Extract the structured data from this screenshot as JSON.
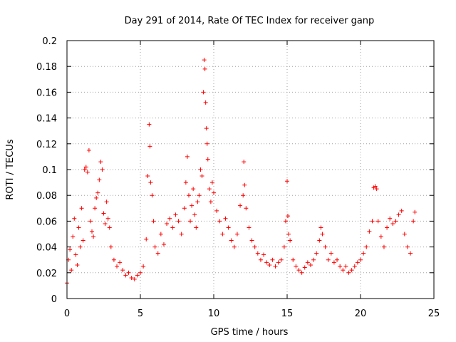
{
  "chart_data": {
    "type": "scatter",
    "title": "Day 291 of 2014, Rate Of TEC Index for receiver ganp",
    "xlabel": "GPS time / hours",
    "ylabel": "ROTI / TECUs",
    "xlim": [
      0,
      25
    ],
    "ylim": [
      0,
      0.2
    ],
    "xticks": [
      0,
      5,
      10,
      15,
      20,
      25
    ],
    "xtick_labels": [
      "0",
      "5",
      "10",
      "15",
      "20",
      "25"
    ],
    "yticks": [
      0,
      0.02,
      0.04,
      0.06,
      0.08,
      0.1,
      0.12,
      0.14,
      0.16,
      0.18,
      0.2
    ],
    "ytick_labels": [
      "0",
      "0.02",
      "0.04",
      "0.06",
      "0.08",
      "0.1",
      "0.12",
      "0.14",
      "0.16",
      "0.18",
      "0.2"
    ],
    "grid": true,
    "marker": "+",
    "color": "#ff0000",
    "series": [
      {
        "name": "ROTI",
        "points": [
          [
            0.0,
            0.012
          ],
          [
            0.1,
            0.03
          ],
          [
            0.2,
            0.038
          ],
          [
            0.3,
            0.022
          ],
          [
            0.4,
            0.048
          ],
          [
            0.5,
            0.062
          ],
          [
            0.6,
            0.034
          ],
          [
            0.7,
            0.026
          ],
          [
            0.8,
            0.055
          ],
          [
            0.9,
            0.04
          ],
          [
            1.0,
            0.07
          ],
          [
            1.1,
            0.045
          ],
          [
            1.2,
            0.1
          ],
          [
            1.3,
            0.102
          ],
          [
            1.4,
            0.098
          ],
          [
            1.5,
            0.115
          ],
          [
            1.6,
            0.06
          ],
          [
            1.7,
            0.052
          ],
          [
            1.8,
            0.048
          ],
          [
            1.9,
            0.07
          ],
          [
            2.0,
            0.078
          ],
          [
            2.1,
            0.082
          ],
          [
            2.2,
            0.092
          ],
          [
            2.3,
            0.106
          ],
          [
            2.4,
            0.1
          ],
          [
            2.5,
            0.066
          ],
          [
            2.6,
            0.058
          ],
          [
            2.7,
            0.075
          ],
          [
            2.8,
            0.062
          ],
          [
            2.9,
            0.055
          ],
          [
            3.0,
            0.04
          ],
          [
            3.2,
            0.03
          ],
          [
            3.4,
            0.025
          ],
          [
            3.6,
            0.028
          ],
          [
            3.8,
            0.022
          ],
          [
            4.0,
            0.018
          ],
          [
            4.2,
            0.02
          ],
          [
            4.4,
            0.016
          ],
          [
            4.6,
            0.015
          ],
          [
            4.8,
            0.018
          ],
          [
            5.0,
            0.02
          ],
          [
            5.2,
            0.025
          ],
          [
            5.4,
            0.046
          ],
          [
            5.5,
            0.095
          ],
          [
            5.6,
            0.135
          ],
          [
            5.65,
            0.118
          ],
          [
            5.7,
            0.09
          ],
          [
            5.8,
            0.08
          ],
          [
            5.9,
            0.06
          ],
          [
            6.0,
            0.04
          ],
          [
            6.2,
            0.035
          ],
          [
            6.4,
            0.05
          ],
          [
            6.6,
            0.042
          ],
          [
            6.8,
            0.058
          ],
          [
            7.0,
            0.062
          ],
          [
            7.2,
            0.055
          ],
          [
            7.4,
            0.065
          ],
          [
            7.6,
            0.06
          ],
          [
            7.8,
            0.05
          ],
          [
            8.0,
            0.07
          ],
          [
            8.1,
            0.09
          ],
          [
            8.2,
            0.11
          ],
          [
            8.3,
            0.08
          ],
          [
            8.4,
            0.06
          ],
          [
            8.5,
            0.072
          ],
          [
            8.6,
            0.085
          ],
          [
            8.7,
            0.065
          ],
          [
            8.8,
            0.055
          ],
          [
            8.9,
            0.075
          ],
          [
            9.0,
            0.08
          ],
          [
            9.1,
            0.1
          ],
          [
            9.2,
            0.095
          ],
          [
            9.3,
            0.16
          ],
          [
            9.35,
            0.185
          ],
          [
            9.4,
            0.178
          ],
          [
            9.45,
            0.152
          ],
          [
            9.5,
            0.132
          ],
          [
            9.55,
            0.12
          ],
          [
            9.6,
            0.108
          ],
          [
            9.7,
            0.085
          ],
          [
            9.8,
            0.075
          ],
          [
            9.9,
            0.09
          ],
          [
            10.0,
            0.082
          ],
          [
            10.2,
            0.068
          ],
          [
            10.4,
            0.06
          ],
          [
            10.6,
            0.05
          ],
          [
            10.8,
            0.062
          ],
          [
            11.0,
            0.055
          ],
          [
            11.2,
            0.045
          ],
          [
            11.4,
            0.04
          ],
          [
            11.6,
            0.05
          ],
          [
            11.8,
            0.072
          ],
          [
            12.0,
            0.08
          ],
          [
            12.05,
            0.106
          ],
          [
            12.1,
            0.088
          ],
          [
            12.2,
            0.07
          ],
          [
            12.4,
            0.055
          ],
          [
            12.6,
            0.045
          ],
          [
            12.8,
            0.04
          ],
          [
            13.0,
            0.035
          ],
          [
            13.2,
            0.03
          ],
          [
            13.4,
            0.034
          ],
          [
            13.6,
            0.028
          ],
          [
            13.8,
            0.026
          ],
          [
            14.0,
            0.03
          ],
          [
            14.2,
            0.025
          ],
          [
            14.4,
            0.028
          ],
          [
            14.6,
            0.03
          ],
          [
            14.8,
            0.04
          ],
          [
            14.9,
            0.06
          ],
          [
            15.0,
            0.091
          ],
          [
            15.05,
            0.064
          ],
          [
            15.1,
            0.05
          ],
          [
            15.2,
            0.045
          ],
          [
            15.4,
            0.03
          ],
          [
            15.6,
            0.025
          ],
          [
            15.8,
            0.022
          ],
          [
            16.0,
            0.02
          ],
          [
            16.2,
            0.024
          ],
          [
            16.4,
            0.028
          ],
          [
            16.6,
            0.026
          ],
          [
            16.8,
            0.03
          ],
          [
            17.0,
            0.035
          ],
          [
            17.2,
            0.045
          ],
          [
            17.3,
            0.055
          ],
          [
            17.4,
            0.05
          ],
          [
            17.6,
            0.04
          ],
          [
            17.8,
            0.03
          ],
          [
            18.0,
            0.035
          ],
          [
            18.2,
            0.028
          ],
          [
            18.4,
            0.03
          ],
          [
            18.6,
            0.025
          ],
          [
            18.8,
            0.022
          ],
          [
            19.0,
            0.025
          ],
          [
            19.2,
            0.02
          ],
          [
            19.4,
            0.022
          ],
          [
            19.6,
            0.025
          ],
          [
            19.8,
            0.028
          ],
          [
            20.0,
            0.03
          ],
          [
            20.2,
            0.035
          ],
          [
            20.4,
            0.04
          ],
          [
            20.6,
            0.052
          ],
          [
            20.8,
            0.06
          ],
          [
            20.9,
            0.086
          ],
          [
            21.0,
            0.087
          ],
          [
            21.1,
            0.085
          ],
          [
            21.2,
            0.06
          ],
          [
            21.4,
            0.048
          ],
          [
            21.6,
            0.04
          ],
          [
            21.8,
            0.055
          ],
          [
            22.0,
            0.062
          ],
          [
            22.2,
            0.058
          ],
          [
            22.4,
            0.06
          ],
          [
            22.6,
            0.065
          ],
          [
            22.8,
            0.068
          ],
          [
            23.0,
            0.05
          ],
          [
            23.2,
            0.04
          ],
          [
            23.4,
            0.035
          ],
          [
            23.6,
            0.06
          ],
          [
            23.7,
            0.067
          ]
        ]
      }
    ]
  }
}
